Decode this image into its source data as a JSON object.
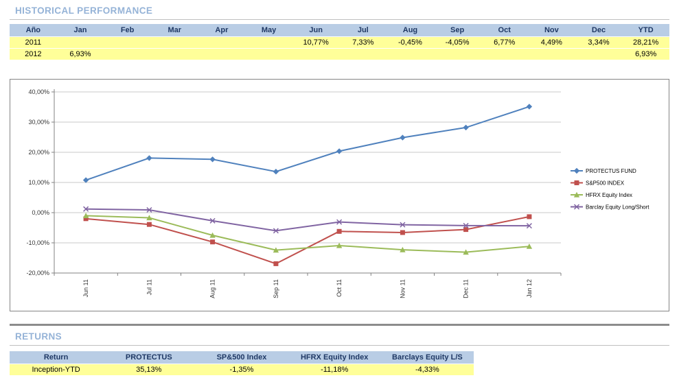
{
  "titles": {
    "historical": "HISTORICAL PERFORMANCE",
    "returns": "RETURNS"
  },
  "colors": {
    "title_text": "#95B3D7",
    "table_header_bg": "#B9CDE5",
    "table_header_text": "#1F3864",
    "highlight_row_bg": "#FFFF99",
    "chart_border": "#848484",
    "gridline": "#C9C9C9"
  },
  "monthly_table": {
    "headers": [
      "Año",
      "Jan",
      "Feb",
      "Mar",
      "Apr",
      "May",
      "Jun",
      "Jul",
      "Aug",
      "Sep",
      "Oct",
      "Nov",
      "Dec",
      "YTD"
    ],
    "rows": [
      [
        "2011",
        "",
        "",
        "",
        "",
        "",
        "10,77%",
        "7,33%",
        "-0,45%",
        "-4,05%",
        "6,77%",
        "4,49%",
        "3,34%",
        "28,21%"
      ],
      [
        "2012",
        "6,93%",
        "",
        "",
        "",
        "",
        "",
        "",
        "",
        "",
        "",
        "",
        "",
        "6,93%"
      ]
    ]
  },
  "chart_data": {
    "type": "line",
    "x": [
      "Jun 11",
      "Jul 11",
      "Aug 11",
      "Sep 11",
      "Oct 11",
      "Nov 11",
      "Dec 11",
      "Jan 12"
    ],
    "series": [
      {
        "name": "PROTECTUS FUND",
        "color": "#4F81BD",
        "marker": "diamond",
        "values": [
          10.77,
          18.1,
          17.65,
          13.6,
          20.37,
          24.86,
          28.21,
          35.13
        ]
      },
      {
        "name": "S&P500 INDEX",
        "color": "#C0504D",
        "marker": "square",
        "values": [
          -2.0,
          -3.9,
          -9.7,
          -16.9,
          -6.2,
          -6.6,
          -5.6,
          -1.35
        ]
      },
      {
        "name": "HFRX Equity Index",
        "color": "#9BBB59",
        "marker": "triangle",
        "values": [
          -1.0,
          -1.7,
          -7.5,
          -12.4,
          -10.9,
          -12.3,
          -13.1,
          -11.18
        ]
      },
      {
        "name": "Barclay Equity Long/Short",
        "color": "#8064A2",
        "marker": "x",
        "values": [
          1.2,
          0.9,
          -2.7,
          -6.0,
          -3.1,
          -4.0,
          -4.3,
          -4.33
        ]
      }
    ],
    "ylim": [
      -20,
      40
    ],
    "ytick_step": 10,
    "ytick_labels": [
      "40,00%",
      "30,00%",
      "20,00%",
      "10,00%",
      "0,00%",
      "-10,00%",
      "-20,00%"
    ],
    "grid": true,
    "legend_position": "right"
  },
  "returns_table": {
    "headers": [
      "Return",
      "PROTECTUS",
      "SP&500 Index",
      "HFRX Equity Index",
      "Barclays Equity L/S"
    ],
    "rows": [
      [
        "Inception-YTD",
        "35,13%",
        "-1,35%",
        "-11,18%",
        "-4,33%"
      ]
    ]
  }
}
